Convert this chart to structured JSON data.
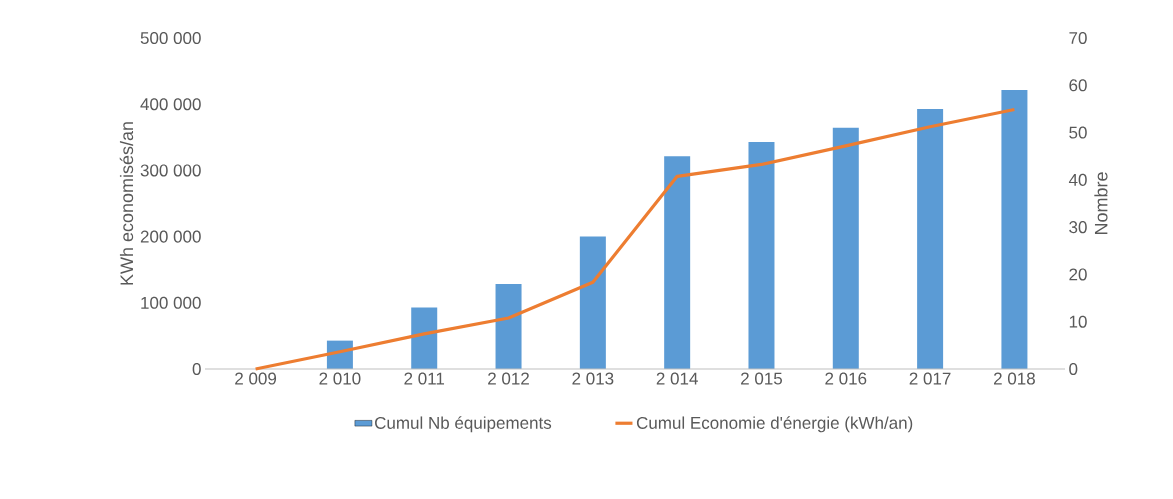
{
  "chart_data": {
    "type": "bar",
    "categories": [
      "2 009",
      "2 010",
      "2 011",
      "2 012",
      "2 013",
      "2 014",
      "2 015",
      "2 016",
      "2 017",
      "2 018"
    ],
    "series": [
      {
        "name": "Cumul Nb équipements",
        "axis": "y2",
        "color": "#5b9bd5",
        "values": [
          0,
          6,
          13,
          18,
          28,
          45,
          48,
          51,
          55,
          59
        ]
      },
      {
        "name": "Cumul Economie d'énergie (kWh/an)",
        "type": "line",
        "axis": "y",
        "color": "#ed7d31",
        "values": [
          0,
          26000,
          53000,
          77000,
          131000,
          291000,
          309000,
          337000,
          366000,
          392000
        ]
      }
    ],
    "ylabel": "KWh economisés/an",
    "y2label": "Nombre",
    "ylim": [
      0,
      500000
    ],
    "yticks": [
      0,
      {
        "value": 100000,
        "label": "100 000"
      },
      {
        "value": 200000,
        "label": "200 000"
      },
      {
        "value": 300000,
        "label": "300 000"
      },
      {
        "value": 400000,
        "label": "400 000"
      },
      {
        "value": 500000,
        "label": "500 000"
      }
    ],
    "y2lim": [
      0,
      70
    ],
    "y2ticks": [
      0,
      10,
      20,
      30,
      40,
      50,
      60,
      70
    ],
    "legend": "bottom"
  }
}
